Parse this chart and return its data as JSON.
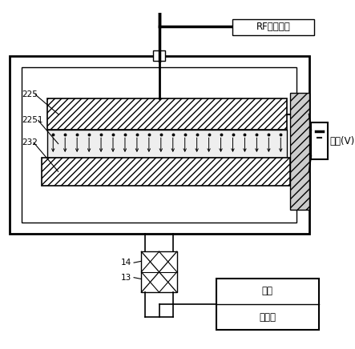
{
  "bg_color": "#ffffff",
  "lc": "#000000",
  "label_RF": "RF电源馈入",
  "label_bias": "偏压(V)",
  "label_225": "225",
  "label_2251": "2251",
  "label_232": "232",
  "label_14": "14",
  "label_13": "13",
  "label_dry": "干泵",
  "label_roots": "罗茨泵",
  "font_size": 8.5
}
